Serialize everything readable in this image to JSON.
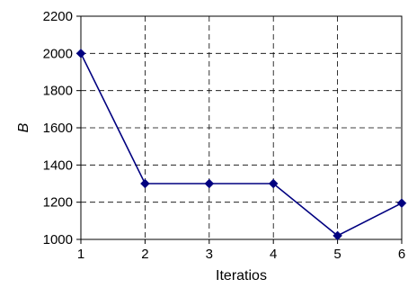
{
  "chart_data": {
    "type": "line",
    "title": "",
    "xlabel": "Iteratios",
    "ylabel": "B",
    "xlim": [
      1,
      6
    ],
    "ylim": [
      1000,
      2200
    ],
    "x_ticks": [
      1,
      2,
      3,
      4,
      5,
      6
    ],
    "y_ticks": [
      1000,
      1200,
      1400,
      1600,
      1800,
      2000,
      2200
    ],
    "grid": true,
    "grid_style": "dashed",
    "legend": "none",
    "series": [
      {
        "x": [
          1,
          2,
          3,
          4,
          5,
          6
        ],
        "y": [
          2000,
          1300,
          1300,
          1300,
          1020,
          1195
        ],
        "color": "#000080",
        "marker": "diamond"
      }
    ]
  }
}
